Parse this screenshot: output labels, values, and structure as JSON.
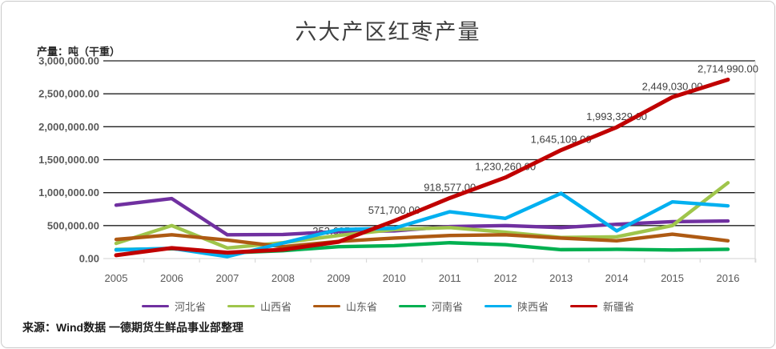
{
  "title": "六大产区红枣产量",
  "y_axis_unit": "产量：吨（干重）",
  "source": "来源：Wind数据  一德期货生鲜品事业部整理",
  "chart_data": {
    "type": "line",
    "title": "六大产区红枣产量",
    "ylabel": "产量：吨（干重）",
    "xlabel": "",
    "categories": [
      "2005",
      "2006",
      "2007",
      "2008",
      "2009",
      "2010",
      "2011",
      "2012",
      "2013",
      "2014",
      "2015",
      "2016"
    ],
    "ylim": [
      0,
      3000000
    ],
    "y_tick_step": 500000,
    "y_tick_labels": [
      "0.00",
      "500,000.00",
      "1,000,000.00",
      "1,500,000.00",
      "2,000,000.00",
      "2,500,000.00",
      "3,000,000.00"
    ],
    "grid": "horizontal",
    "legend_position": "bottom",
    "series": [
      {
        "name": "河北省",
        "color": "#7030A0",
        "values": [
          810000,
          910000,
          360000,
          365000,
          410000,
          420000,
          485000,
          500000,
          470000,
          520000,
          560000,
          570000
        ]
      },
      {
        "name": "山西省",
        "color": "#9FC54B",
        "values": [
          230000,
          500000,
          160000,
          240000,
          350000,
          440000,
          470000,
          400000,
          320000,
          330000,
          500000,
          1150000
        ]
      },
      {
        "name": "山东省",
        "color": "#AE5A13",
        "values": [
          290000,
          360000,
          280000,
          180000,
          260000,
          310000,
          350000,
          360000,
          310000,
          270000,
          370000,
          270000
        ]
      },
      {
        "name": "河南省",
        "color": "#00B050",
        "values": [
          135000,
          150000,
          85000,
          120000,
          180000,
          195000,
          240000,
          210000,
          135000,
          140000,
          130000,
          140000
        ]
      },
      {
        "name": "陕西省",
        "color": "#00B0F0",
        "values": [
          130000,
          155000,
          30000,
          235000,
          440000,
          460000,
          710000,
          610000,
          990000,
          420000,
          860000,
          800000
        ]
      },
      {
        "name": "新疆省",
        "color": "#C00000",
        "values": [
          50000,
          160000,
          90000,
          135000,
          253605,
          571700,
          918577,
          1230260,
          1645109,
          1993329,
          2449030,
          2714990
        ],
        "data_labels": [
          null,
          null,
          null,
          null,
          "253,605.00",
          "571,700.00",
          "918,577.00",
          "1,230,260.00",
          "1,645,109.00",
          "1,993,329.00",
          "2,449,030.00",
          "2,714,990.00"
        ]
      }
    ],
    "colors": {
      "gridline_dark": "#1f1f1f",
      "axis_light": "#d9d9d9",
      "tick_text": "#595959",
      "data_label_text": "#404040"
    }
  }
}
